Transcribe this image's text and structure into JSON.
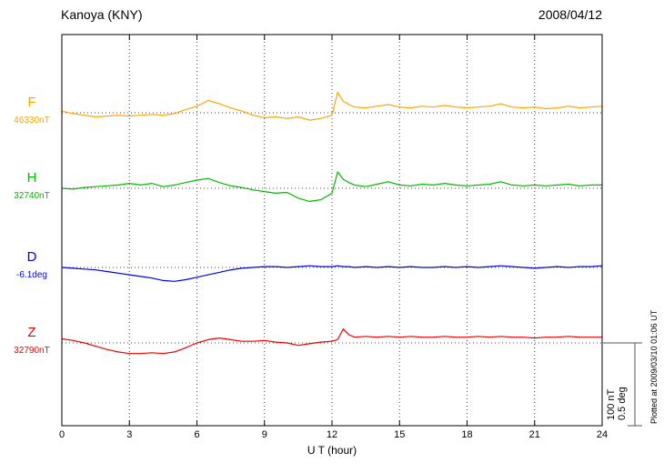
{
  "header": {
    "title": "Kanoya (KNY)",
    "date": "2008/04/12"
  },
  "side": {
    "scale_nt": "100 nT",
    "scale_deg": "0.5 deg",
    "plotted_at": "Plotted at 2009/03/10 01:06 UT"
  },
  "chart_data": {
    "type": "line",
    "title": "Kanoya (KNY) magnetogram",
    "date": "2008/04/12",
    "xlabel": "U T (hour)",
    "x_range": [
      0,
      24
    ],
    "x_ticks": [
      0,
      3,
      6,
      9,
      12,
      15,
      18,
      21,
      24
    ],
    "grid": "dotted vertical lines every 3 h; dotted horizontal baseline per trace",
    "scale_bar": {
      "nT": 100,
      "deg": 0.5
    },
    "x": [
      0,
      0.5,
      1,
      1.5,
      2,
      2.5,
      3,
      3.5,
      4,
      4.5,
      5,
      5.5,
      6,
      6.5,
      7,
      7.5,
      8,
      8.5,
      9,
      9.5,
      10,
      10.5,
      11,
      11.5,
      12,
      12.25,
      12.5,
      12.75,
      13,
      13.5,
      14,
      14.5,
      15,
      15.5,
      16,
      16.5,
      17,
      17.5,
      18,
      18.5,
      19,
      19.5,
      20,
      20.5,
      21,
      21.5,
      22,
      22.5,
      23,
      23.5,
      24
    ],
    "series": [
      {
        "name": "F",
        "unit": "nT",
        "baseline_label": "46330nT",
        "baseline_value": 46330,
        "color": "#FFA500",
        "offsets": [
          2,
          -1,
          -3,
          -5,
          -4,
          -3,
          -4,
          -3,
          -2,
          -3,
          -1,
          4,
          8,
          15,
          11,
          6,
          2,
          -3,
          -6,
          -5,
          -7,
          -5,
          -9,
          -7,
          -3,
          25,
          14,
          10,
          7,
          6,
          8,
          10,
          7,
          6,
          8,
          7,
          9,
          7,
          6,
          7,
          8,
          11,
          7,
          6,
          7,
          5,
          6,
          8,
          6,
          7,
          8
        ]
      },
      {
        "name": "H",
        "unit": "nT",
        "baseline_label": "32740nT",
        "baseline_value": 32740,
        "color": "#00BB00",
        "offsets": [
          0,
          -1,
          1,
          2,
          3,
          4,
          6,
          4,
          6,
          2,
          4,
          7,
          10,
          12,
          7,
          3,
          1,
          -2,
          -4,
          -6,
          -5,
          -12,
          -16,
          -14,
          -6,
          20,
          11,
          7,
          4,
          2,
          5,
          8,
          4,
          3,
          5,
          4,
          6,
          4,
          3,
          4,
          5,
          8,
          4,
          3,
          4,
          3,
          4,
          5,
          3,
          4,
          4
        ]
      },
      {
        "name": "D",
        "unit": "deg",
        "baseline_label": "-6.1deg",
        "baseline_value": -6.1,
        "color": "#0000EE",
        "offsets": [
          0,
          -0.005,
          -0.01,
          -0.015,
          -0.025,
          -0.035,
          -0.045,
          -0.055,
          -0.065,
          -0.08,
          -0.085,
          -0.075,
          -0.06,
          -0.045,
          -0.03,
          -0.015,
          -0.005,
          0,
          0.005,
          0.005,
          0,
          0.005,
          0.01,
          0.005,
          0.005,
          0.01,
          0.005,
          0.005,
          0,
          0.005,
          0,
          0.005,
          0,
          0.005,
          0,
          0,
          0.005,
          0,
          0.005,
          0,
          0.005,
          0.01,
          0.005,
          0,
          -0.005,
          0,
          0.005,
          0,
          0.005,
          0.005,
          0.01
        ]
      },
      {
        "name": "Z",
        "unit": "nT",
        "baseline_label": "32790nT",
        "baseline_value": 32790,
        "color": "#EE0000",
        "offsets": [
          5,
          3,
          0,
          -4,
          -8,
          -11,
          -13,
          -13,
          -12,
          -13,
          -11,
          -6,
          0,
          4,
          6,
          4,
          2,
          2,
          3,
          1,
          0,
          -3,
          -1,
          1,
          2,
          4,
          17,
          10,
          7,
          8,
          7,
          8,
          7,
          8,
          7,
          7,
          8,
          7,
          7,
          8,
          7,
          8,
          7,
          7,
          6,
          7,
          7,
          8,
          7,
          7,
          7
        ]
      }
    ]
  }
}
